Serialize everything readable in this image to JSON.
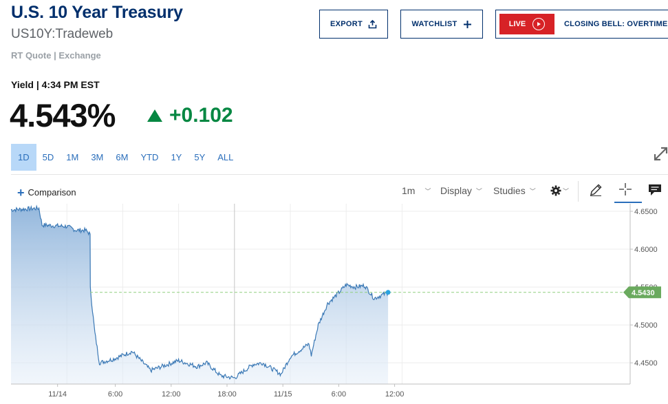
{
  "header": {
    "title": "U.S. 10 Year Treasury",
    "symbol": "US10Y:Tradeweb",
    "source": "RT Quote | Exchange",
    "export_label": "EXPORT",
    "watchlist_label": "WATCHLIST",
    "live_label": "LIVE",
    "closing_bell_label": "CLOSING BELL: OVERTIME"
  },
  "quote": {
    "yield_label": "Yield | 4:34 PM EST",
    "price": "4.543%",
    "change": "+0.102"
  },
  "ranges": [
    "1D",
    "5D",
    "1M",
    "3M",
    "6M",
    "YTD",
    "1Y",
    "5Y",
    "ALL"
  ],
  "active_range": "1D",
  "toolbar": {
    "comparison_label": "Comparison",
    "interval_label": "1m",
    "display_label": "Display",
    "studies_label": "Studies"
  },
  "colors": {
    "brand": "#002f6c",
    "up": "#068742",
    "live": "#d72226",
    "line": "#3a78b5",
    "current_badge": "#6aaa5e"
  },
  "chart_data": {
    "type": "area",
    "xlabel": "",
    "ylabel": "",
    "x_tick_labels": [
      "11/14",
      "6:00",
      "12:00",
      "18:00",
      "11/15",
      "6:00",
      "12:00"
    ],
    "y_tick_labels": [
      "4.6500",
      "4.6000",
      "4.5500",
      "4.5000",
      "4.4500"
    ],
    "ylim": [
      4.422,
      4.66
    ],
    "current_value": 4.543,
    "current_label": "4.5430",
    "current_line_style": "dashed",
    "grid": true,
    "series": [
      {
        "x": [
          "11/14 00:00",
          "11/14 03:00",
          "11/14 03:20",
          "11/14 06:00",
          "11/14 07:00",
          "11/14 08:00",
          "11/14 08:30",
          "11/14 08:31",
          "11/14 09:00",
          "11/14 09:30",
          "11/14 11:00",
          "11/14 13:00",
          "11/14 15:00",
          "11/14 18:00",
          "11/14 20:00",
          "11/14 21:00",
          "11/14 22:30",
          "11/15 00:00",
          "11/15 02:00",
          "11/15 03:00",
          "11/15 05:00",
          "11/15 06:00",
          "11/15 08:00",
          "11/15 08:15",
          "11/15 09:00",
          "11/15 10:00",
          "11/15 11:00",
          "11/15 12:00",
          "11/15 13:00",
          "11/15 14:00",
          "11/15 15:00",
          "11/15 16:30"
        ],
        "values": [
          4.652,
          4.654,
          4.632,
          4.63,
          4.625,
          4.625,
          4.62,
          4.548,
          4.49,
          4.45,
          4.455,
          4.465,
          4.44,
          4.453,
          4.445,
          4.45,
          4.433,
          4.43,
          4.448,
          4.45,
          4.435,
          4.458,
          4.475,
          4.46,
          4.5,
          4.528,
          4.54,
          4.553,
          4.55,
          4.552,
          4.535,
          4.543
        ]
      }
    ]
  }
}
